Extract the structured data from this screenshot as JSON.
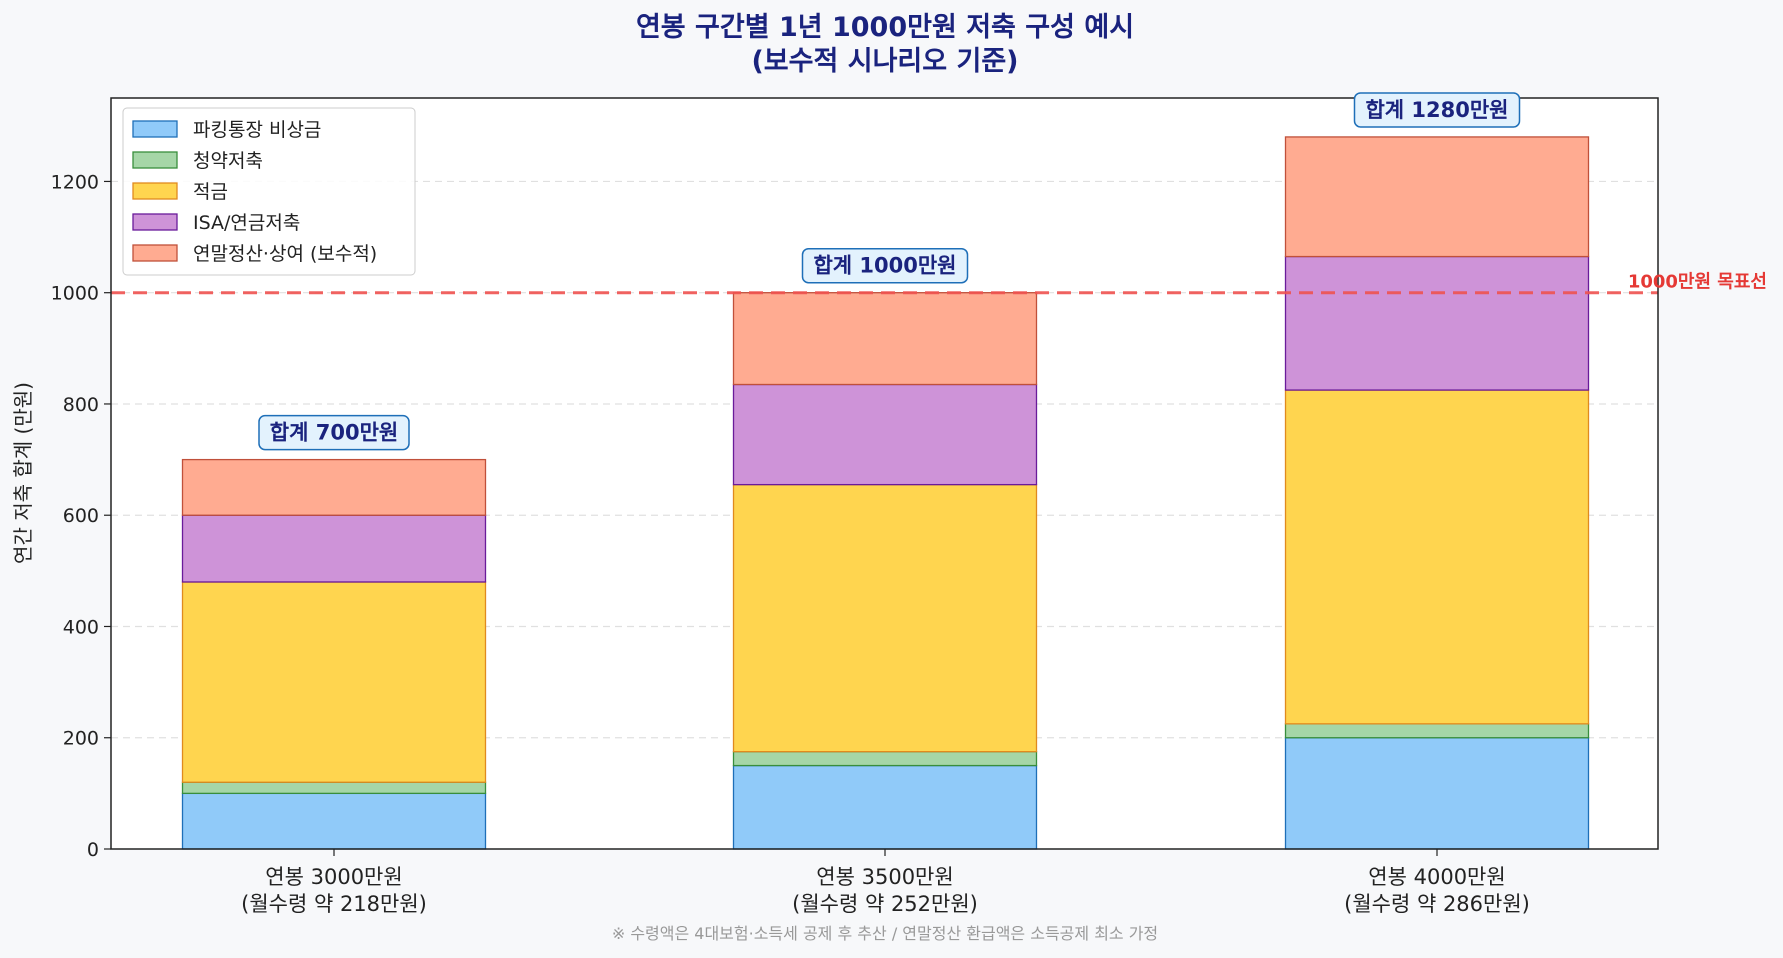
{
  "chart_data": {
    "type": "bar",
    "stacked": true,
    "title_line1": "연봉 구간별 1년 1000만원 저축 구성 예시",
    "title_line2": "(보수적 시나리오 기준)",
    "ylabel": "연간 저축 합계 (만원)",
    "ylim": [
      0,
      1350
    ],
    "yticks": [
      0,
      200,
      400,
      600,
      800,
      1000,
      1200
    ],
    "grid": true,
    "legend_position": "top-left",
    "categories": [
      {
        "line1": "연봉 3000만원",
        "line2": "(월수령 약 218만원)"
      },
      {
        "line1": "연봉 3500만원",
        "line2": "(월수령 약 252만원)"
      },
      {
        "line1": "연봉 4000만원",
        "line2": "(월수령 약 286만원)"
      }
    ],
    "series": [
      {
        "name": "파킹통장 비상금",
        "values": [
          100,
          150,
          200
        ],
        "color": "#90caf9",
        "edge": "#1e6fb8"
      },
      {
        "name": "청약저축",
        "values": [
          20,
          25,
          25
        ],
        "color": "#a5d6a7",
        "edge": "#388e3c"
      },
      {
        "name": "적금",
        "values": [
          360,
          480,
          600
        ],
        "color": "#ffd54f",
        "edge": "#e08a1e"
      },
      {
        "name": "ISA/연금저축",
        "values": [
          120,
          180,
          240
        ],
        "color": "#ce93d8",
        "edge": "#6a1b9a"
      },
      {
        "name": "연말정산·상여 (보수적)",
        "values": [
          100,
          165,
          215
        ],
        "color": "#ffab91",
        "edge": "#c0503a"
      }
    ],
    "totals": [
      "합계 700만원",
      "합계 1000만원",
      "합계 1280만원"
    ],
    "total_values": [
      700,
      1000,
      1280
    ],
    "target": {
      "value": 1000,
      "label": "1000만원 목표선",
      "color": "#ef5350"
    },
    "footnote": "※ 수령액은 4대보험·소득세 공제 후 추산 / 연말정산 환급액은 소득공제 최소 가정"
  }
}
